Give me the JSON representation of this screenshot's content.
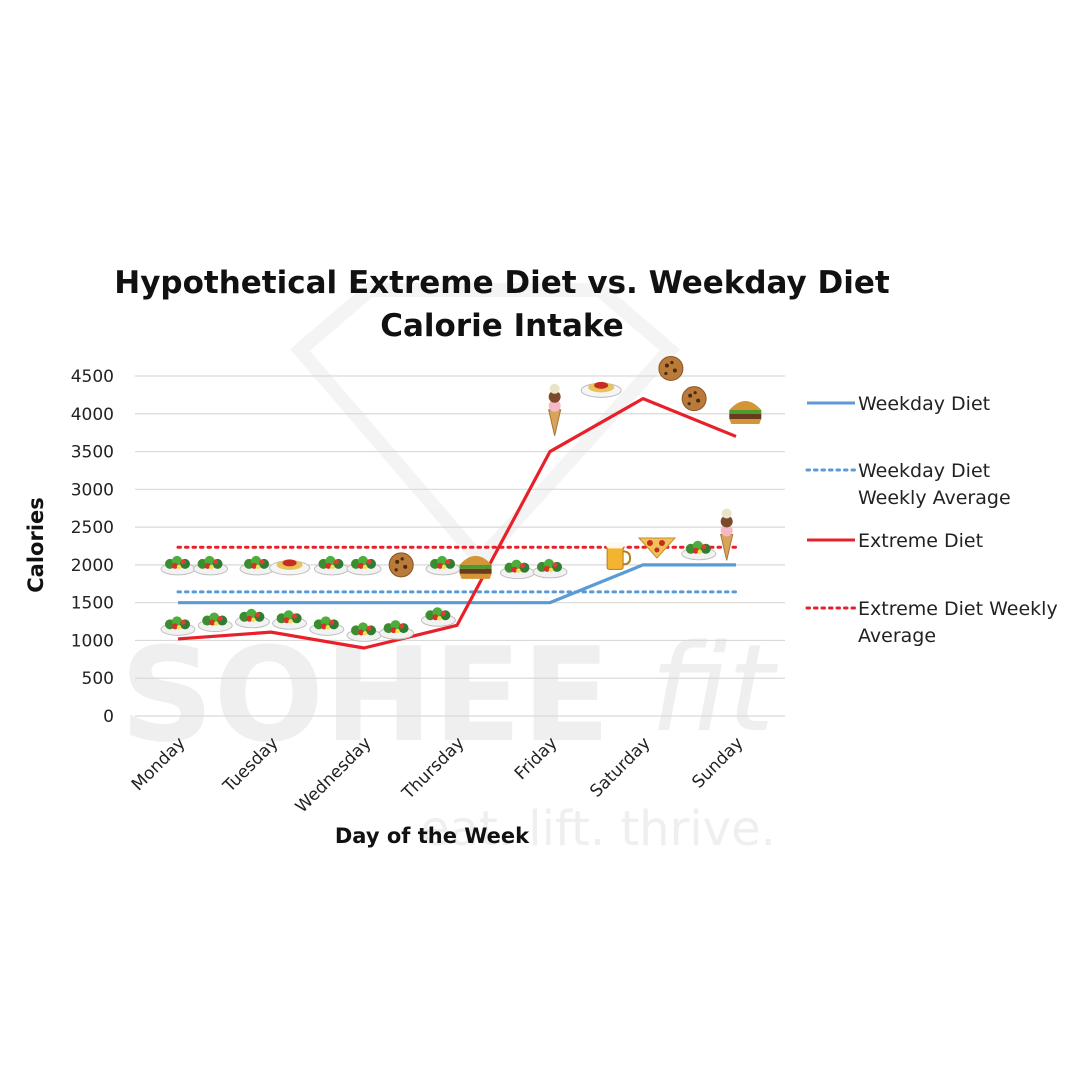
{
  "chart_data": {
    "type": "line",
    "title_line1": "Hypothetical Extreme Diet vs. Weekday Diet",
    "title_line2": "Calorie Intake",
    "xlabel": "Day of the Week",
    "ylabel": "Calories",
    "ylim": [
      0,
      4500
    ],
    "yticks": [
      0,
      500,
      1000,
      1500,
      2000,
      2500,
      3000,
      3500,
      4000,
      4500
    ],
    "categories": [
      "Monday",
      "Tuesday",
      "Wednesday",
      "Thursday",
      "Friday",
      "Saturday",
      "Sunday"
    ],
    "grid": true,
    "legend_position": "right",
    "series": [
      {
        "name": "Weekday Diet",
        "style": "solid",
        "color": "#5b9bd5",
        "values": [
          1500,
          1500,
          1500,
          1500,
          1500,
          2000,
          2000
        ]
      },
      {
        "name": "Weekday Diet Weekly Average",
        "style": "dotted",
        "color": "#5b9bd5",
        "values": [
          1643,
          1643,
          1643,
          1643,
          1643,
          1643,
          1643
        ]
      },
      {
        "name": "Extreme Diet",
        "style": "solid",
        "color": "#e8202a",
        "values": [
          1020,
          1110,
          900,
          1200,
          3500,
          4200,
          3700
        ]
      },
      {
        "name": "Extreme Diet Weekly Average",
        "style": "dotted",
        "color": "#e8202a",
        "values": [
          2233,
          2233,
          2233,
          2233,
          2233,
          2233,
          2233
        ]
      }
    ],
    "legend_lines": [
      [
        "Weekday Diet"
      ],
      [
        "Weekday Diet",
        "Weekly Average"
      ],
      [
        "Extreme Diet"
      ],
      [
        "Extreme Diet Weekly",
        "Average"
      ]
    ]
  },
  "food_icons": [
    {
      "icon": "salad-icon",
      "day": 0,
      "cal": 2000
    },
    {
      "icon": "salad-icon",
      "day": 0.35,
      "cal": 2000
    },
    {
      "icon": "salad-icon",
      "day": 0.85,
      "cal": 2000
    },
    {
      "icon": "spaghetti-icon",
      "day": 1.2,
      "cal": 2000
    },
    {
      "icon": "salad-icon",
      "day": 1.65,
      "cal": 2000
    },
    {
      "icon": "salad-icon",
      "day": 2.0,
      "cal": 2000
    },
    {
      "icon": "cookies-icon",
      "day": 2.4,
      "cal": 2000
    },
    {
      "icon": "salad-icon",
      "day": 2.85,
      "cal": 2000
    },
    {
      "icon": "burger-icon",
      "day": 3.2,
      "cal": 2000
    },
    {
      "icon": "salad-icon",
      "day": 3.65,
      "cal": 1950
    },
    {
      "icon": "salad-icon",
      "day": 4.0,
      "cal": 1960
    },
    {
      "icon": "salad-icon",
      "day": 0,
      "cal": 1200
    },
    {
      "icon": "salad-icon",
      "day": 0.4,
      "cal": 1250
    },
    {
      "icon": "salad-icon",
      "day": 0.8,
      "cal": 1300
    },
    {
      "icon": "salad-icon",
      "day": 1.2,
      "cal": 1280
    },
    {
      "icon": "salad-icon",
      "day": 1.6,
      "cal": 1200
    },
    {
      "icon": "salad-icon",
      "day": 2.0,
      "cal": 1120
    },
    {
      "icon": "salad-icon",
      "day": 2.35,
      "cal": 1150
    },
    {
      "icon": "salad-icon",
      "day": 2.8,
      "cal": 1320
    },
    {
      "icon": "beer-icon",
      "day": 4.7,
      "cal": 2100
    },
    {
      "icon": "pizza-icon",
      "day": 5.15,
      "cal": 2250
    },
    {
      "icon": "salad-icon",
      "day": 5.6,
      "cal": 2200
    },
    {
      "icon": "ice-cream-icon",
      "day": 5.9,
      "cal": 2350
    },
    {
      "icon": "ice-cream-icon",
      "day": 4.05,
      "cal": 4000
    },
    {
      "icon": "spaghetti-icon",
      "day": 4.55,
      "cal": 4350
    },
    {
      "icon": "cookies-icon",
      "day": 5.3,
      "cal": 4600
    },
    {
      "icon": "cookies-icon",
      "day": 5.55,
      "cal": 4200
    },
    {
      "icon": "burger-icon",
      "day": 6.1,
      "cal": 4050
    }
  ]
}
